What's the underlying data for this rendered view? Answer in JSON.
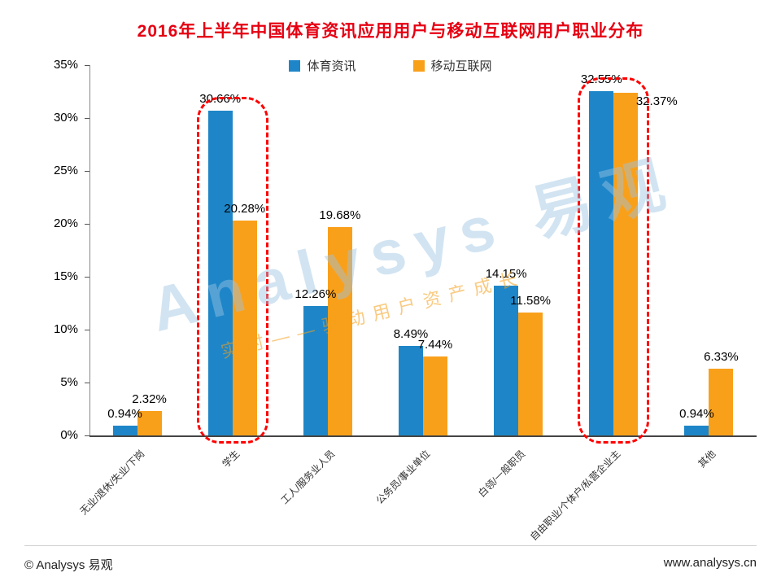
{
  "title": "2016年上半年中国体育资讯应用用户与移动互联网用户职业分布",
  "colors": {
    "title": "#e60012",
    "series1": "#1e86c8",
    "series2": "#f9a01b",
    "highlight": "#ff0000"
  },
  "legend": [
    {
      "label": "体育资讯",
      "color": "#1e86c8"
    },
    {
      "label": "移动互联网",
      "color": "#f9a01b"
    }
  ],
  "watermark": {
    "main": "Analysys 易观",
    "tagline": "实时——驱动用户资产成长"
  },
  "footer": {
    "left": "© Analysys 易观",
    "right": "www.analysys.cn"
  },
  "chart_data": {
    "type": "bar",
    "title": "2016年上半年中国体育资讯应用用户与移动互联网用户职业分布",
    "categories": [
      "无业/退休/失业/下岗",
      "学生",
      "工人/服务业人员",
      "公务员/事业单位",
      "白领/一般职员",
      "自由职业/个体户/私营企业主",
      "其他"
    ],
    "series": [
      {
        "name": "体育资讯",
        "color": "#1e86c8",
        "values": [
          0.94,
          30.66,
          12.26,
          8.49,
          14.15,
          32.55,
          0.94
        ]
      },
      {
        "name": "移动互联网",
        "color": "#f9a01b",
        "values": [
          2.32,
          20.28,
          19.68,
          7.44,
          11.58,
          32.37,
          6.33
        ]
      }
    ],
    "labels": [
      [
        "0.94%",
        "30.66%",
        "12.26%",
        "8.49%",
        "14.15%",
        "32.55%",
        "0.94%"
      ],
      [
        "2.32%",
        "20.28%",
        "19.68%",
        "7.44%",
        "11.58%",
        "32.37%",
        "6.33%"
      ]
    ],
    "ylim": [
      0,
      35
    ],
    "yticks": [
      "0%",
      "5%",
      "10%",
      "15%",
      "20%",
      "25%",
      "30%",
      "35%"
    ],
    "grid": false,
    "legend_position": "top",
    "highlighted_categories": [
      1,
      5
    ]
  }
}
